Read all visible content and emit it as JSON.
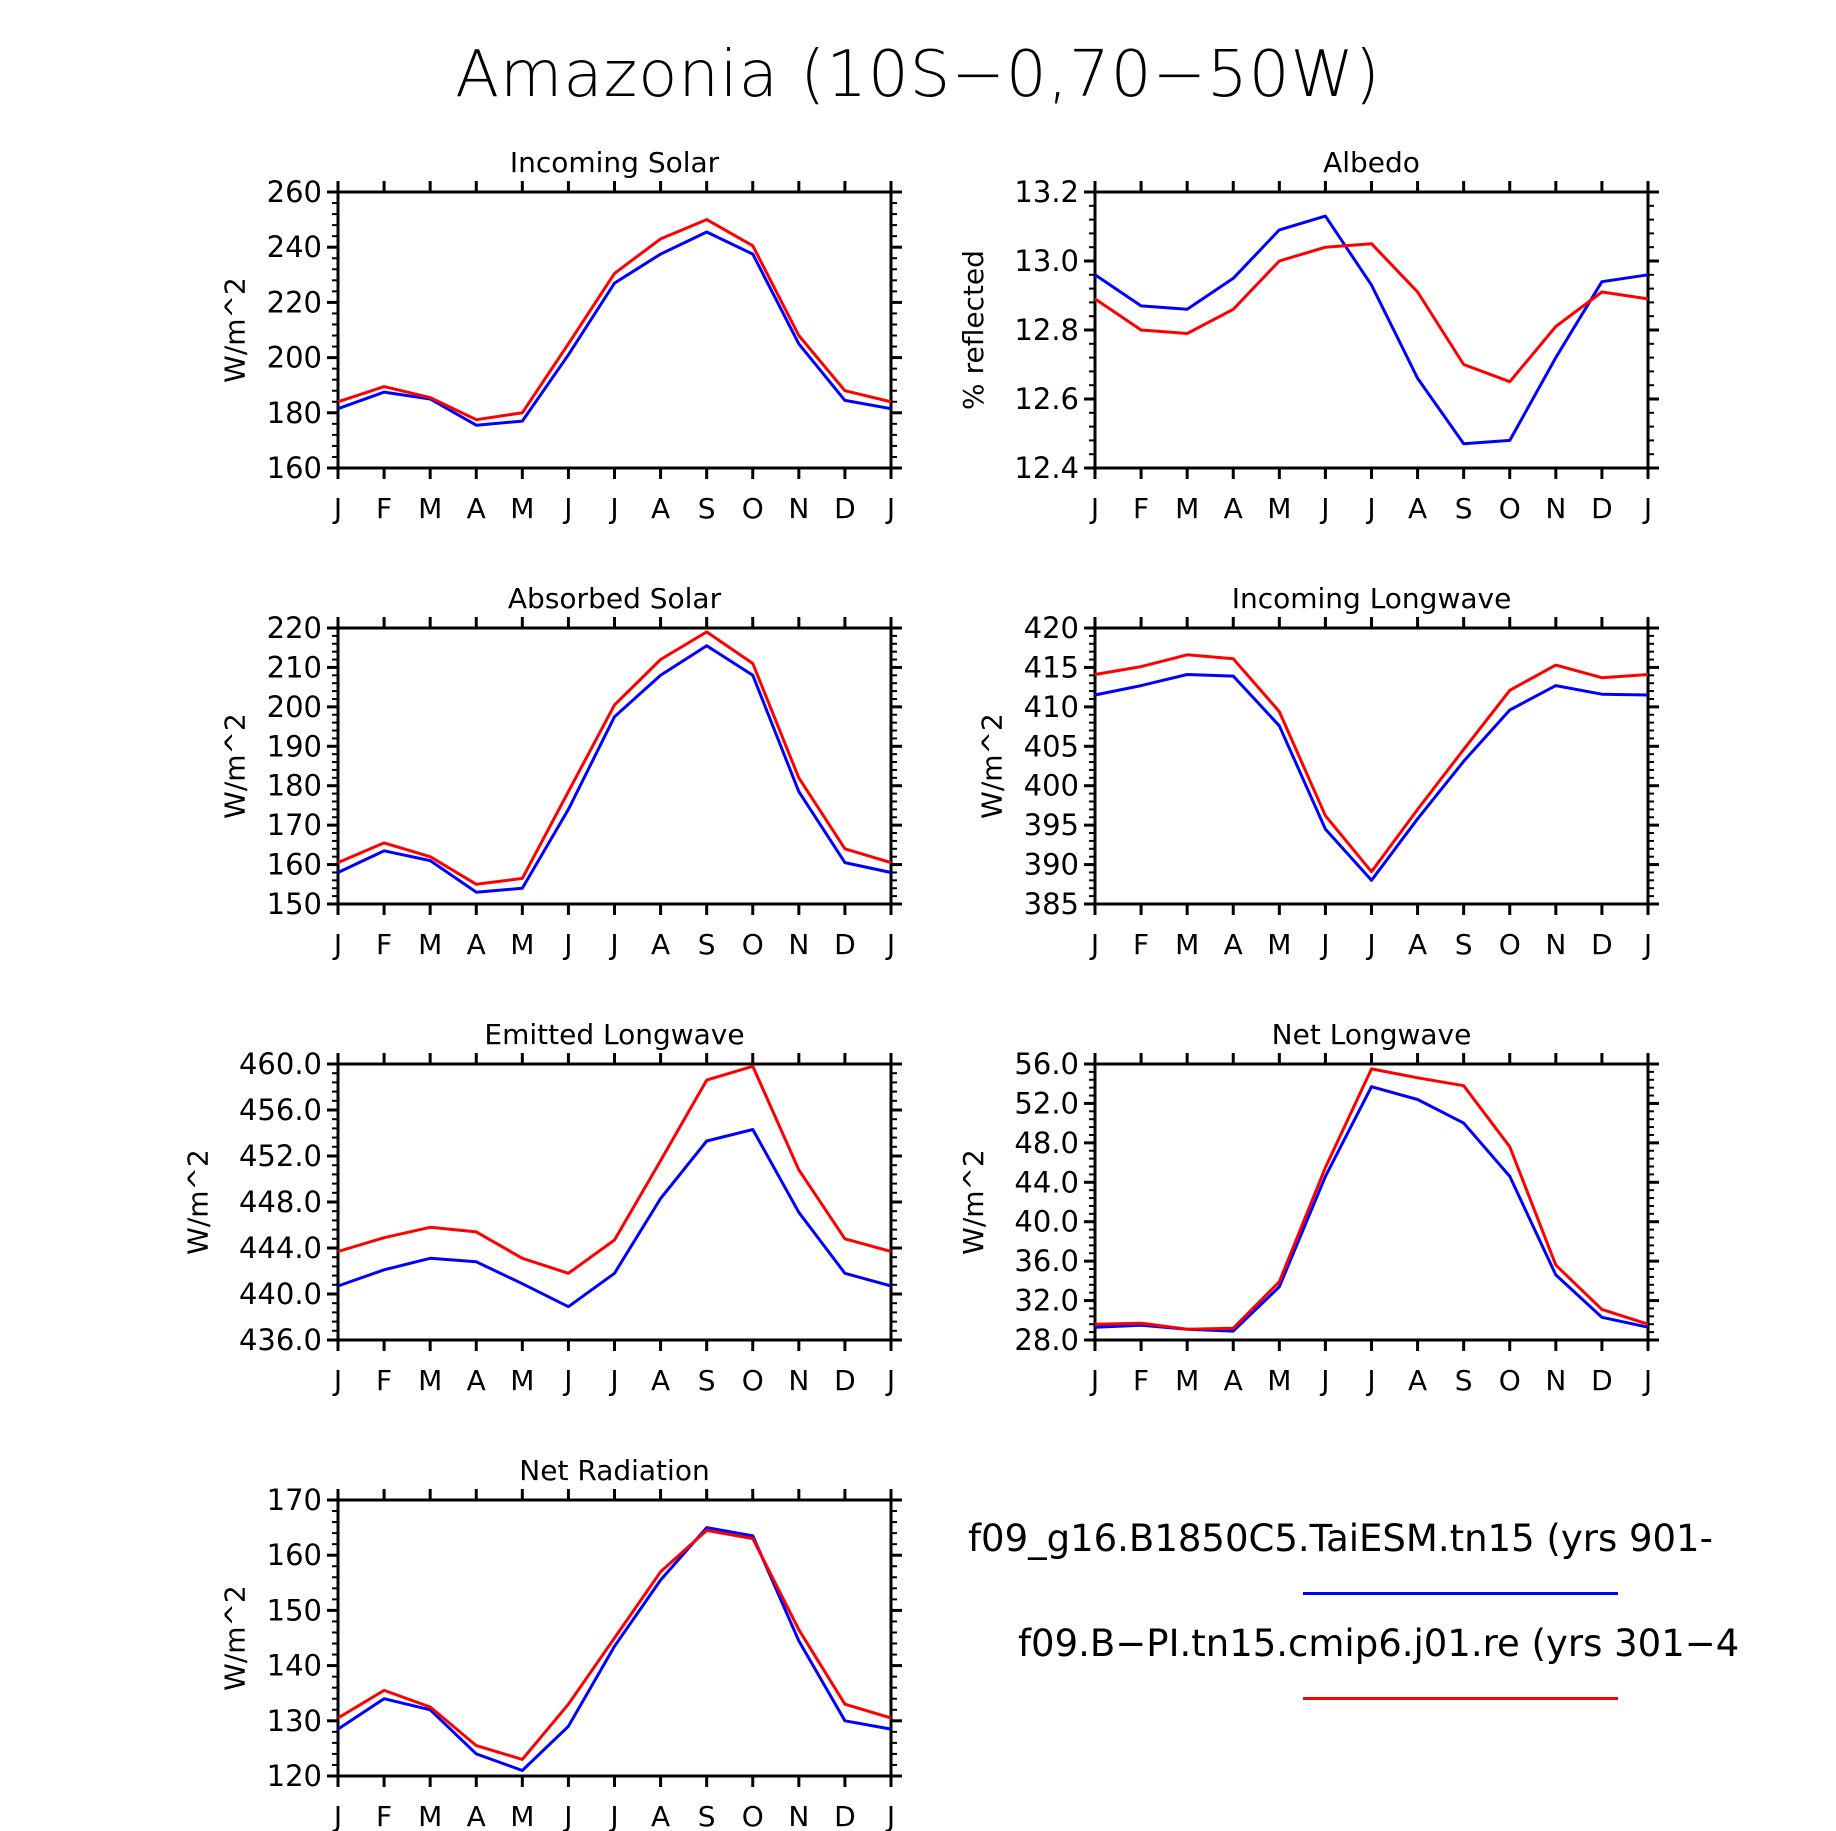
{
  "title": "Amazonia (10S−0,70−50W)",
  "months": [
    "J",
    "F",
    "M",
    "A",
    "M",
    "J",
    "J",
    "A",
    "S",
    "O",
    "N",
    "D",
    "J"
  ],
  "legend": [
    {
      "name": "f09_g16.B1850C5.TaiESM.tn15 (yrs 901-",
      "color": "#0000ff"
    },
    {
      "name": "f09.B−PI.tn15.cmip6.j01.re (yrs 301−4",
      "color": "#ff0000"
    }
  ],
  "chart_data": [
    {
      "type": "line",
      "title": "Incoming Solar",
      "ylabel": "W/m^2",
      "ylim": [
        160,
        260
      ],
      "yticks": [
        160,
        180,
        200,
        220,
        240,
        260
      ],
      "ytick_labels": [
        "160",
        "180",
        "200",
        "220",
        "240",
        "260"
      ],
      "categories": [
        "J",
        "F",
        "M",
        "A",
        "M",
        "J",
        "J",
        "A",
        "S",
        "O",
        "N",
        "D",
        "J"
      ],
      "series": [
        {
          "color": "#0000ff",
          "values": [
            181.5,
            187.5,
            185.0,
            175.5,
            177.0,
            201.0,
            227.0,
            237.5,
            245.5,
            237.5,
            205.0,
            184.5,
            181.5
          ]
        },
        {
          "color": "#ff0000",
          "values": [
            184.0,
            189.5,
            185.5,
            177.5,
            180.0,
            205.0,
            230.5,
            243.0,
            250.0,
            240.5,
            208.0,
            188.0,
            184.0
          ]
        }
      ]
    },
    {
      "type": "line",
      "title": "Albedo",
      "ylabel": "% reflected",
      "ylim": [
        12.4,
        13.2
      ],
      "yticks": [
        12.4,
        12.6,
        12.8,
        13.0,
        13.2
      ],
      "ytick_labels": [
        "12.4",
        "12.6",
        "12.8",
        "13.0",
        "13.2"
      ],
      "categories": [
        "J",
        "F",
        "M",
        "A",
        "M",
        "J",
        "J",
        "A",
        "S",
        "O",
        "N",
        "D",
        "J"
      ],
      "series": [
        {
          "color": "#0000ff",
          "values": [
            12.96,
            12.87,
            12.86,
            12.95,
            13.09,
            13.13,
            12.93,
            12.66,
            12.47,
            12.48,
            12.72,
            12.94,
            12.96
          ]
        },
        {
          "color": "#ff0000",
          "values": [
            12.89,
            12.8,
            12.79,
            12.86,
            13.0,
            13.04,
            13.05,
            12.91,
            12.7,
            12.65,
            12.81,
            12.91,
            12.89
          ]
        }
      ]
    },
    {
      "type": "line",
      "title": "Absorbed Solar",
      "ylabel": "W/m^2",
      "ylim": [
        150,
        220
      ],
      "yticks": [
        150,
        160,
        170,
        180,
        190,
        200,
        210,
        220
      ],
      "ytick_labels": [
        "150",
        "160",
        "170",
        "180",
        "190",
        "200",
        "210",
        "220"
      ],
      "categories": [
        "J",
        "F",
        "M",
        "A",
        "M",
        "J",
        "J",
        "A",
        "S",
        "O",
        "N",
        "D",
        "J"
      ],
      "series": [
        {
          "color": "#0000ff",
          "values": [
            158.0,
            163.5,
            161.0,
            153.0,
            154.0,
            174.0,
            197.5,
            208.0,
            215.5,
            208.0,
            178.5,
            160.5,
            158.0
          ]
        },
        {
          "color": "#ff0000",
          "values": [
            160.5,
            165.5,
            162.0,
            155.0,
            156.5,
            178.5,
            200.5,
            212.0,
            219.0,
            211.0,
            182.0,
            164.0,
            160.5
          ]
        }
      ]
    },
    {
      "type": "line",
      "title": "Incoming Longwave",
      "ylabel": "W/m^2",
      "ylim": [
        385,
        420
      ],
      "yticks": [
        385,
        390,
        395,
        400,
        405,
        410,
        415,
        420
      ],
      "ytick_labels": [
        "385",
        "390",
        "395",
        "400",
        "405",
        "410",
        "415",
        "420"
      ],
      "categories": [
        "J",
        "F",
        "M",
        "A",
        "M",
        "J",
        "J",
        "A",
        "S",
        "O",
        "N",
        "D",
        "J"
      ],
      "series": [
        {
          "color": "#0000ff",
          "values": [
            411.5,
            412.7,
            414.1,
            413.9,
            407.6,
            394.5,
            388.0,
            395.8,
            403.1,
            409.6,
            412.7,
            411.6,
            411.5
          ]
        },
        {
          "color": "#ff0000",
          "values": [
            414.1,
            415.1,
            416.6,
            416.1,
            409.4,
            396.2,
            389.1,
            397.0,
            404.6,
            412.1,
            415.3,
            413.7,
            414.1
          ]
        }
      ]
    },
    {
      "type": "line",
      "title": "Emitted Longwave",
      "ylabel": "W/m^2",
      "ylim": [
        436.0,
        460.0
      ],
      "yticks": [
        436,
        440,
        444,
        448,
        452,
        456,
        460
      ],
      "ytick_labels": [
        "436.0",
        "440.0",
        "444.0",
        "448.0",
        "452.0",
        "456.0",
        "460.0"
      ],
      "categories": [
        "J",
        "F",
        "M",
        "A",
        "M",
        "J",
        "J",
        "A",
        "S",
        "O",
        "N",
        "D",
        "J"
      ],
      "series": [
        {
          "color": "#0000ff",
          "values": [
            440.7,
            442.1,
            443.1,
            442.8,
            440.9,
            438.9,
            441.8,
            448.3,
            453.3,
            454.3,
            447.1,
            441.8,
            440.7
          ]
        },
        {
          "color": "#ff0000",
          "values": [
            443.7,
            444.9,
            445.8,
            445.4,
            443.1,
            441.8,
            444.7,
            451.6,
            458.6,
            459.8,
            450.8,
            444.8,
            443.7
          ]
        }
      ]
    },
    {
      "type": "line",
      "title": "Net Longwave",
      "ylabel": "W/m^2",
      "ylim": [
        28.0,
        56.0
      ],
      "yticks": [
        28,
        32,
        36,
        40,
        44,
        48,
        52,
        56
      ],
      "ytick_labels": [
        "28.0",
        "32.0",
        "36.0",
        "40.0",
        "44.0",
        "48.0",
        "52.0",
        "56.0"
      ],
      "categories": [
        "J",
        "F",
        "M",
        "A",
        "M",
        "J",
        "J",
        "A",
        "S",
        "O",
        "N",
        "D",
        "J"
      ],
      "series": [
        {
          "color": "#0000ff",
          "values": [
            29.3,
            29.5,
            29.1,
            28.9,
            33.4,
            44.6,
            53.7,
            52.4,
            50.0,
            44.6,
            34.6,
            30.3,
            29.3
          ]
        },
        {
          "color": "#ff0000",
          "values": [
            29.6,
            29.7,
            29.1,
            29.2,
            33.9,
            45.5,
            55.5,
            54.6,
            53.8,
            47.6,
            35.6,
            31.1,
            29.6
          ]
        }
      ]
    },
    {
      "type": "line",
      "title": "Net Radiation",
      "ylabel": "W/m^2",
      "ylim": [
        120,
        170
      ],
      "yticks": [
        120,
        130,
        140,
        150,
        160,
        170
      ],
      "ytick_labels": [
        "120",
        "130",
        "140",
        "150",
        "160",
        "170"
      ],
      "categories": [
        "J",
        "F",
        "M",
        "A",
        "M",
        "J",
        "J",
        "A",
        "S",
        "O",
        "N",
        "D",
        "J"
      ],
      "series": [
        {
          "color": "#0000ff",
          "values": [
            128.5,
            134.0,
            132.0,
            124.0,
            121.0,
            129.0,
            143.5,
            155.5,
            165.0,
            163.5,
            144.5,
            130.0,
            128.5
          ]
        },
        {
          "color": "#ff0000",
          "values": [
            130.5,
            135.5,
            132.5,
            125.5,
            123.0,
            133.0,
            145.0,
            157.0,
            164.5,
            163.0,
            146.5,
            133.0,
            130.5
          ]
        }
      ]
    }
  ]
}
